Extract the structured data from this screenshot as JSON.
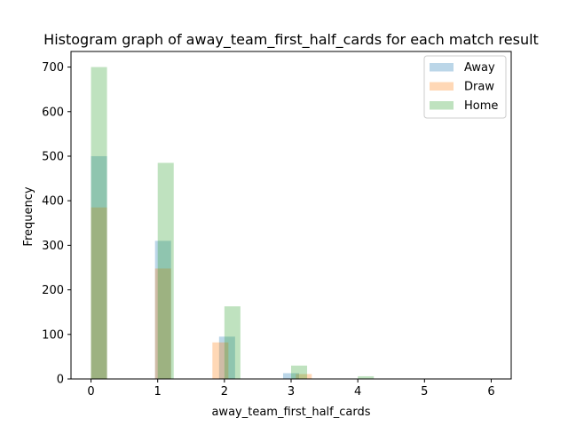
{
  "chart_data": {
    "type": "bar",
    "title": "Histogram graph of away_team_first_half_cards for each match result",
    "xlabel": "away_team_first_half_cards",
    "ylabel": "Frequency",
    "xlim": [
      -0.3,
      6.3
    ],
    "ylim": [
      0,
      735
    ],
    "xticks": [
      0,
      1,
      2,
      3,
      4,
      5,
      6
    ],
    "yticks": [
      0,
      100,
      200,
      300,
      400,
      500,
      600,
      700
    ],
    "grid": false,
    "legend_position": "top-right",
    "bin_width": 0.24,
    "series": [
      {
        "name": "Away",
        "color": "#1f77b4",
        "bins": [
          {
            "x0": 0.0,
            "value": 500
          },
          {
            "x0": 0.96,
            "value": 310
          },
          {
            "x0": 1.92,
            "value": 95
          },
          {
            "x0": 2.88,
            "value": 13
          }
        ]
      },
      {
        "name": "Draw",
        "color": "#ff7f0e",
        "bins": [
          {
            "x0": 0.0,
            "value": 385
          },
          {
            "x0": 0.96,
            "value": 248
          },
          {
            "x0": 1.82,
            "value": 82
          },
          {
            "x0": 3.07,
            "value": 11
          }
        ]
      },
      {
        "name": "Home",
        "color": "#2ca02c",
        "bins": [
          {
            "x0": 0.0,
            "value": 700
          },
          {
            "x0": 1.0,
            "value": 485
          },
          {
            "x0": 2.0,
            "value": 163
          },
          {
            "x0": 3.0,
            "value": 30
          },
          {
            "x0": 4.0,
            "value": 6
          }
        ]
      }
    ]
  }
}
